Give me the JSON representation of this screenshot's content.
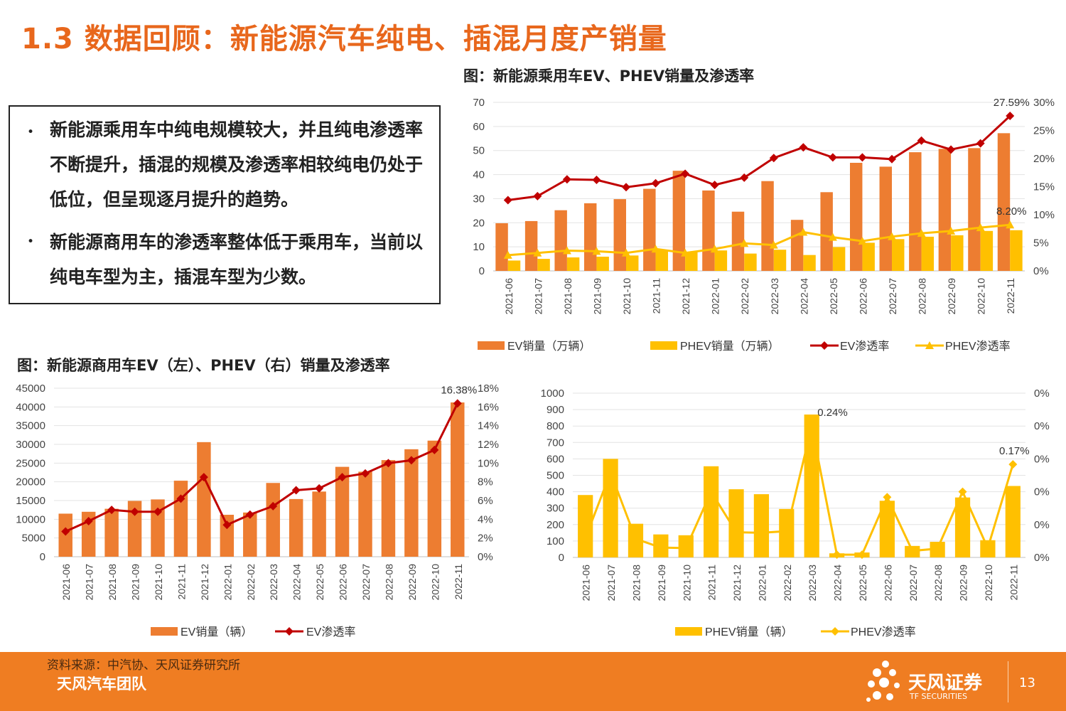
{
  "page": {
    "title": "1.3 数据回顾：新能源汽车纯电、插混月度产销量",
    "bullets": [
      "新能源乘用车中纯电规模较大，并且纯电渗透率不断提升，插混的规模及渗透率相较纯电仍处于低位，但呈现逐月提升的趋势。",
      "新能源商用车的渗透率整体低于乘用车，当前以纯电车型为主，插混车型为少数。"
    ],
    "bullet_symbol": "•",
    "chart1_title": "图：新能源乘用车EV、PHEV销量及渗透率",
    "chart2_title": "图：新能源商用车EV（左）、PHEV（右）销量及渗透率",
    "source": "资料来源：中汽协、天风证券研究所",
    "team": "天风汽车团队",
    "brand": "天风证券",
    "brand_en": "TF SECURITIES",
    "page_number": "13"
  },
  "colors": {
    "accent": "#e8671c",
    "bar_ev": "#ed7d31",
    "bar_phev": "#ffc000",
    "line_ev": "#c00000",
    "line_phev": "#ffc000",
    "footer": "#ef7d22"
  },
  "chart_data": [
    {
      "type": "bar",
      "id": "passenger",
      "categories": [
        "2021-06",
        "2021-07",
        "2021-08",
        "2021-09",
        "2021-10",
        "2021-11",
        "2021-12",
        "2022-01",
        "2022-02",
        "2022-03",
        "2022-04",
        "2022-05",
        "2022-06",
        "2022-07",
        "2022-08",
        "2022-09",
        "2022-10",
        "2022-11"
      ],
      "series": [
        {
          "name": "EV销量（万辆）",
          "type": "bar",
          "axis": "left",
          "values": [
            19.8,
            20.7,
            25.2,
            28.1,
            29.8,
            34.1,
            41.6,
            33.4,
            24.6,
            37.3,
            21.2,
            32.7,
            44.9,
            43.3,
            49.3,
            50.7,
            51.0,
            57.2
          ]
        },
        {
          "name": "PHEV销量（万辆）",
          "type": "bar",
          "axis": "left",
          "values": [
            4.3,
            5.0,
            5.6,
            5.9,
            6.4,
            8.6,
            7.7,
            8.5,
            7.2,
            8.8,
            6.6,
            9.9,
            11.7,
            13.2,
            14.2,
            14.8,
            16.6,
            16.9
          ]
        },
        {
          "name": "EV渗透率",
          "type": "line",
          "axis": "right",
          "values": [
            12.6,
            13.3,
            16.3,
            16.2,
            14.9,
            15.6,
            17.3,
            15.3,
            16.6,
            20.1,
            22.0,
            20.2,
            20.2,
            19.9,
            23.2,
            21.6,
            22.7,
            27.59
          ]
        },
        {
          "name": "PHEV渗透率",
          "type": "line",
          "axis": "right",
          "values": [
            2.8,
            3.2,
            3.6,
            3.5,
            3.2,
            3.9,
            3.2,
            3.9,
            4.9,
            4.6,
            6.9,
            6.0,
            5.3,
            6.1,
            6.7,
            7.1,
            7.7,
            8.2
          ]
        }
      ],
      "ylim_left": [
        0,
        70
      ],
      "yticks_left": [
        "0",
        "10",
        "20",
        "30",
        "40",
        "50",
        "60",
        "70"
      ],
      "ylim_right": [
        0,
        30
      ],
      "yticks_right": [
        "0%",
        "5%",
        "10%",
        "15%",
        "20%",
        "25%",
        "30%"
      ],
      "annotations": [
        {
          "series": "EV渗透率",
          "index": 17,
          "text": "27.59%"
        },
        {
          "series": "PHEV渗透率",
          "index": 17,
          "text": "8.20%"
        }
      ],
      "legend": "bottom"
    },
    {
      "type": "bar",
      "id": "commercial-ev",
      "categories": [
        "2021-06",
        "2021-07",
        "2021-08",
        "2021-09",
        "2021-10",
        "2021-11",
        "2021-12",
        "2022-01",
        "2022-02",
        "2022-03",
        "2022-04",
        "2022-05",
        "2022-06",
        "2022-07",
        "2022-08",
        "2022-09",
        "2022-10",
        "2022-11"
      ],
      "series": [
        {
          "name": "EV销量（辆）",
          "type": "bar",
          "axis": "left",
          "values": [
            11500,
            12000,
            12800,
            14900,
            15300,
            20300,
            30600,
            11200,
            11800,
            19700,
            15400,
            17400,
            24000,
            22700,
            25800,
            28700,
            31000,
            41200
          ]
        },
        {
          "name": "EV渗透率",
          "type": "line",
          "axis": "right",
          "values": [
            2.7,
            3.8,
            5.0,
            4.8,
            4.8,
            6.2,
            8.5,
            3.4,
            4.5,
            5.4,
            7.1,
            7.3,
            8.5,
            8.9,
            10.0,
            10.3,
            11.4,
            16.38
          ]
        }
      ],
      "ylim_left": [
        0,
        45000
      ],
      "yticks_left": [
        "0",
        "5000",
        "10000",
        "15000",
        "20000",
        "25000",
        "30000",
        "35000",
        "40000",
        "45000"
      ],
      "ylim_right": [
        0,
        18
      ],
      "yticks_right": [
        "0%",
        "2%",
        "4%",
        "6%",
        "8%",
        "10%",
        "12%",
        "14%",
        "16%",
        "18%"
      ],
      "annotations": [
        {
          "series": "EV渗透率",
          "index": 17,
          "text": "16.38%"
        }
      ],
      "legend": "bottom"
    },
    {
      "type": "bar",
      "id": "commercial-phev",
      "categories": [
        "2021-06",
        "2021-07",
        "2021-08",
        "2021-09",
        "2021-10",
        "2021-11",
        "2021-12",
        "2022-01",
        "2022-02",
        "2022-03",
        "2022-04",
        "2022-05",
        "2022-06",
        "2022-07",
        "2022-08",
        "2022-09",
        "2022-10",
        "2022-11"
      ],
      "series": [
        {
          "name": "PHEV销量（辆）",
          "type": "bar",
          "axis": "left",
          "values": [
            380,
            600,
            205,
            140,
            135,
            555,
            415,
            385,
            295,
            870,
            25,
            30,
            345,
            70,
            95,
            365,
            105,
            435
          ]
        },
        {
          "name": "PHEV渗透率",
          "type": "line",
          "axis": "right",
          "values": [
            0.035,
            0.155,
            0.034,
            0.018,
            0.017,
            0.12,
            0.046,
            0.045,
            0.048,
            0.24,
            0.005,
            0.005,
            0.11,
            0.012,
            0.016,
            0.12,
            0.017,
            0.17
          ]
        }
      ],
      "ylim_left": [
        0,
        1000
      ],
      "yticks_left": [
        "0",
        "100",
        "200",
        "300",
        "400",
        "500",
        "600",
        "700",
        "800",
        "900",
        "1000"
      ],
      "ylim_right": [
        0,
        0.3
      ],
      "yticks_right": [
        "0%",
        "0%",
        "0%",
        "0%",
        "0%",
        "0%"
      ],
      "annotations": [
        {
          "series": "PHEV渗透率",
          "index": 9,
          "text": "0.24%"
        },
        {
          "series": "PHEV渗透率",
          "index": 17,
          "text": "0.17%"
        }
      ],
      "legend": "bottom"
    }
  ]
}
